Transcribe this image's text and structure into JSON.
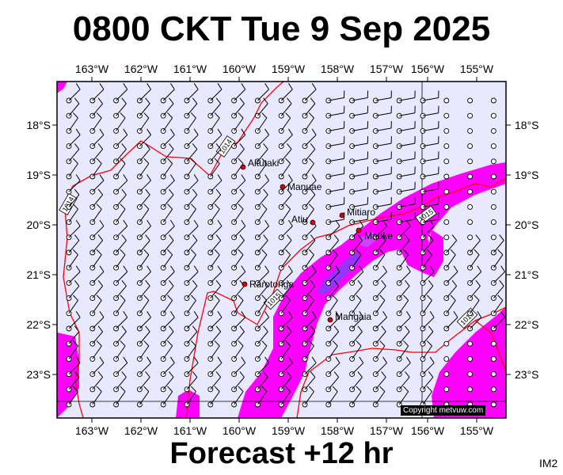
{
  "title": "0800 CKT Tue 9 Sep 2025",
  "subtitle": "Forecast +12 hr",
  "image_tag": "IM2",
  "copyright": "Copyright metvuw.com",
  "colors": {
    "background": "#e8e8ff",
    "precip_light": "#ff00ff",
    "precip_heavy": "#9933ff",
    "isobar": "#ff0000",
    "barb": "#000000"
  },
  "axes": {
    "longitude_ticks": [
      "163°W",
      "162°W",
      "161°W",
      "160°W",
      "159°W",
      "158°W",
      "157°W",
      "156°W",
      "155°W"
    ],
    "latitude_ticks": [
      "18°S",
      "19°S",
      "20°S",
      "21°S",
      "22°S",
      "23°S"
    ]
  },
  "places": [
    {
      "name": "Aitutaki"
    },
    {
      "name": "Manuae"
    },
    {
      "name": "Atiu"
    },
    {
      "name": "Mitiaro"
    },
    {
      "name": "Mauke"
    },
    {
      "name": "Rarotonga"
    },
    {
      "name": "Mangaia"
    }
  ],
  "isobar_labels": [
    "1014",
    "1014",
    "1015",
    "1015",
    "1016"
  ]
}
